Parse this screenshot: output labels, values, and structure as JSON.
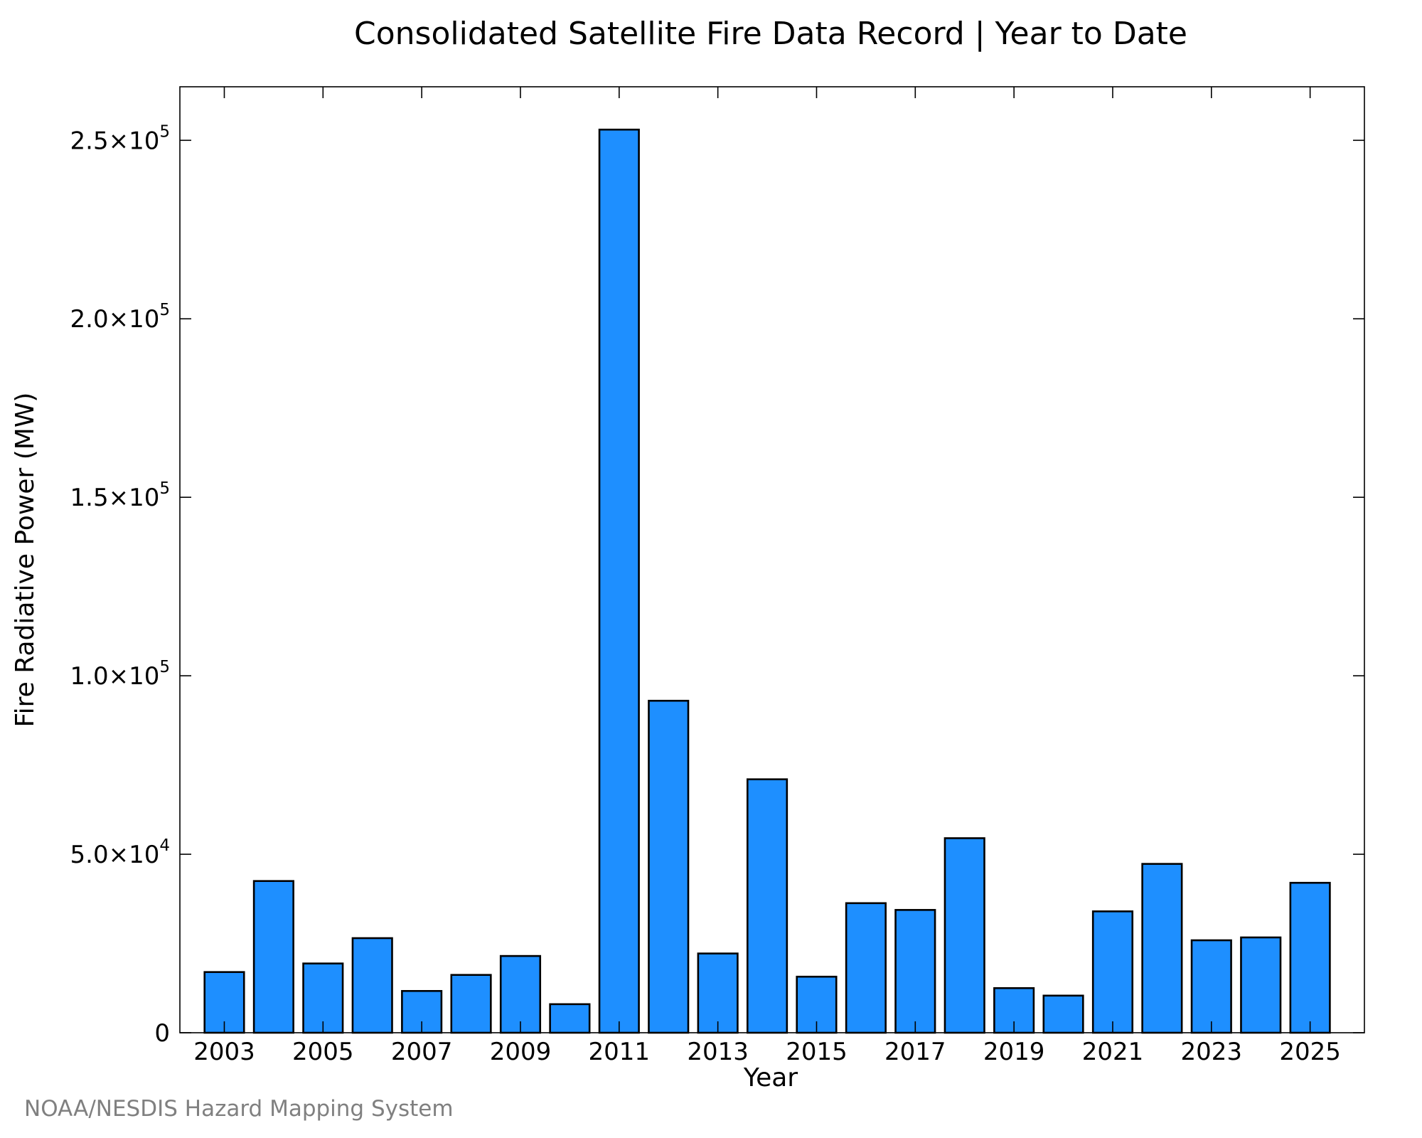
{
  "chart_data": {
    "type": "bar",
    "title": "Consolidated Satellite Fire Data Record | Year to Date",
    "xlabel": "Year",
    "ylabel": "Fire Radiative Power (MW)",
    "source": "NOAA/NESDIS Hazard Mapping System",
    "categories": [
      2003,
      2004,
      2005,
      2006,
      2007,
      2008,
      2009,
      2010,
      2011,
      2012,
      2013,
      2014,
      2015,
      2016,
      2017,
      2018,
      2019,
      2020,
      2021,
      2022,
      2023,
      2024,
      2025
    ],
    "values": [
      17000,
      42500,
      19400,
      26500,
      11700,
      16200,
      21500,
      8000,
      253000,
      93000,
      22200,
      71000,
      15700,
      36300,
      34400,
      54500,
      12500,
      10400,
      34000,
      47300,
      25900,
      26700,
      42000
    ],
    "xtick_labels": [
      "2003",
      "2005",
      "2007",
      "2009",
      "2011",
      "2013",
      "2015",
      "2017",
      "2019",
      "2021",
      "2023",
      "2025"
    ],
    "ytick_labels": [
      {
        "value": 0,
        "mantissa": "0",
        "exp": ""
      },
      {
        "value": 50000,
        "mantissa": "5.0×10",
        "exp": "4"
      },
      {
        "value": 100000,
        "mantissa": "1.0×10",
        "exp": "5"
      },
      {
        "value": 150000,
        "mantissa": "1.5×10",
        "exp": "5"
      },
      {
        "value": 200000,
        "mantissa": "2.0×10",
        "exp": "5"
      },
      {
        "value": 250000,
        "mantissa": "2.5×10",
        "exp": "5"
      }
    ],
    "xlim": [
      2002.1,
      2026.1
    ],
    "ylim": [
      0,
      265000
    ],
    "bar_color": "#1e8fff",
    "edge_color": "#000000",
    "grid": false,
    "legend": "none"
  }
}
